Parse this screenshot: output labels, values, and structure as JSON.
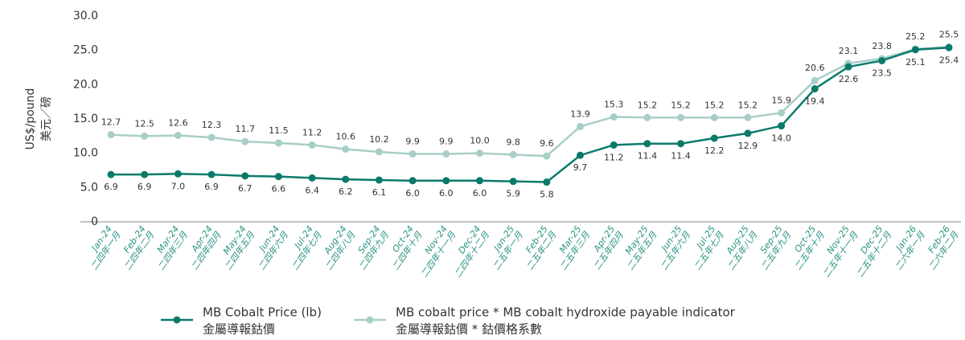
{
  "chart_data": {
    "type": "line",
    "y_label": [
      "US$/pound",
      "美元／磅"
    ],
    "categories": [
      [
        "Jan-24",
        "二四年一月"
      ],
      [
        "Feb-24",
        "二四年二月"
      ],
      [
        "Mar-24",
        "二四年三月"
      ],
      [
        "Apr-24",
        "二四年四月"
      ],
      [
        "May-24",
        "二四年五月"
      ],
      [
        "Jun-24",
        "二四年六月"
      ],
      [
        "Jul-24",
        "二四年七月"
      ],
      [
        "Aug-24",
        "二四年八月"
      ],
      [
        "Sep-24",
        "二四年九月"
      ],
      [
        "Oct-24",
        "二四年十月"
      ],
      [
        "Nov-24",
        "二四年十一月"
      ],
      [
        "Dec-24",
        "二四年十二月"
      ],
      [
        "Jan-25",
        "二五年一月"
      ],
      [
        "Feb-25",
        "二五年二月"
      ],
      [
        "Mar-25",
        "二五年三月"
      ],
      [
        "Apr-25",
        "二五年四月"
      ],
      [
        "May-25",
        "二五年五月"
      ],
      [
        "Jun-25",
        "二五年六月"
      ],
      [
        "Jul-25",
        "二五年七月"
      ],
      [
        "Aug-25",
        "二五年八月"
      ],
      [
        "Sep-25",
        "二五年九月"
      ],
      [
        "Oct-25",
        "二五年十月"
      ],
      [
        "Nov-25",
        "二五年十一月"
      ],
      [
        "Dec-25",
        "二五年十二月"
      ],
      [
        "Jan-26",
        "二六年一月"
      ],
      [
        "Feb-26",
        "二六年二月"
      ]
    ],
    "series": [
      {
        "name": [
          "MB Cobalt Price (lb)",
          "金屬導報鈷價"
        ],
        "color": "#0b7a6b",
        "label_position": "below",
        "values": [
          6.9,
          6.9,
          7.0,
          6.9,
          6.7,
          6.6,
          6.4,
          6.2,
          6.1,
          6.0,
          6.0,
          6.0,
          5.9,
          5.8,
          9.7,
          11.2,
          11.4,
          11.4,
          12.2,
          12.9,
          14.0,
          19.4,
          22.6,
          23.5,
          25.1,
          25.4
        ],
        "value_labels": [
          "6.9",
          "6.9",
          "7.0",
          "6.9",
          "6.7",
          "6.6",
          "6.4",
          "6.2",
          "6.1",
          "6.0",
          "6.0",
          "6.0",
          "5.9",
          "5.8",
          "9.7",
          "11.2",
          "11.4",
          "11.4",
          "12.2",
          "12.9",
          "14.0",
          "19.4",
          "22.6",
          "23.5",
          "25.1",
          "25.4"
        ]
      },
      {
        "name": [
          "MB cobalt price * MB cobalt hydroxide payable indicator",
          "金屬導報鈷價 * 鈷價格系數"
        ],
        "color": "#a8cec8",
        "label_position": "above",
        "values": [
          12.7,
          12.5,
          12.6,
          12.3,
          11.7,
          11.5,
          11.2,
          10.6,
          10.2,
          9.9,
          9.9,
          10.0,
          9.8,
          9.6,
          13.9,
          15.3,
          15.2,
          15.2,
          15.2,
          15.2,
          15.9,
          20.6,
          23.1,
          23.8,
          25.2,
          25.5
        ],
        "value_labels": [
          "12.7",
          "12.5",
          "12.6",
          "12.3",
          "11.7",
          "11.5",
          "11.2",
          "10.6",
          "10.2",
          "9.9",
          "9.9",
          "10.0",
          "9.8",
          "9.6",
          "13.9",
          "15.3",
          "15.2",
          "15.2",
          "15.2",
          "15.2",
          "15.9",
          "20.6",
          "23.1",
          "23.8",
          "25.2",
          "25.5"
        ]
      }
    ],
    "ylim": [
      0,
      30
    ],
    "yticks": [
      0,
      {
        "value": 5,
        "label": "5.0"
      },
      {
        "value": 10,
        "label": "10.0"
      },
      {
        "value": 15,
        "label": "15.0"
      },
      {
        "value": 20,
        "label": "20.0"
      },
      {
        "value": 25,
        "label": "25.0"
      },
      {
        "value": 30,
        "label": "30.0"
      }
    ],
    "grid": false,
    "legend": "bottom"
  }
}
